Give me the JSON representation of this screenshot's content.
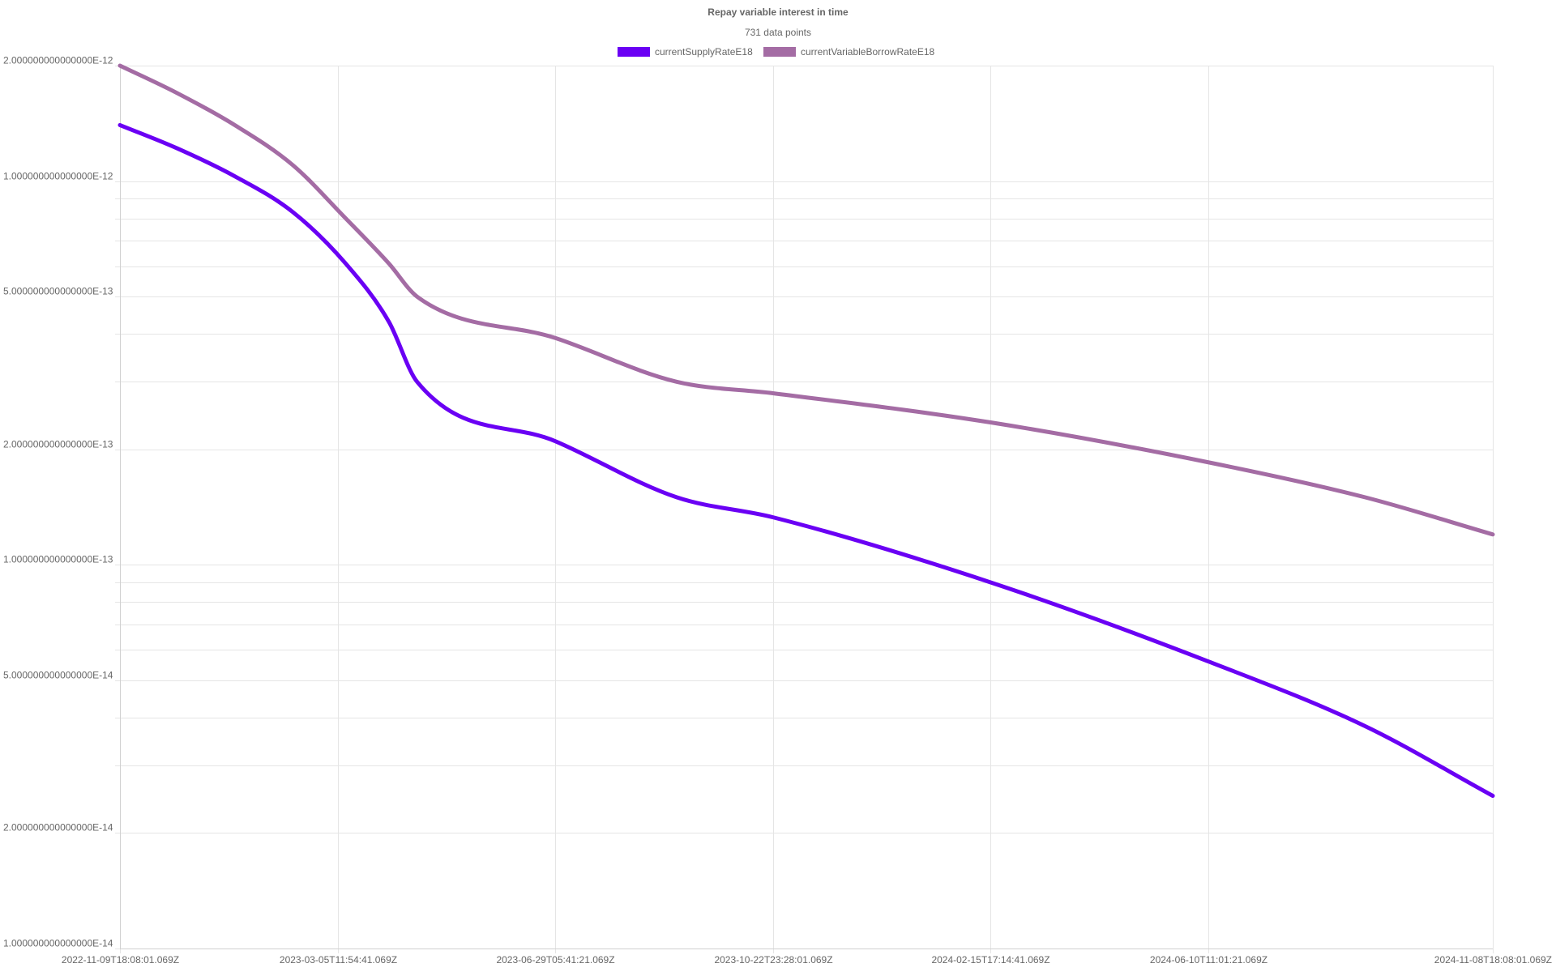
{
  "chart_data": {
    "type": "line",
    "title": "Repay variable interest in time",
    "subtitle": "731 data points",
    "xlabel": "",
    "ylabel": "",
    "x_scale": "time",
    "y_scale": "log",
    "x_range": [
      "2022-11-09T18:08:01.069Z",
      "2024-11-08T18:08:01.069Z"
    ],
    "ylim": [
      1e-14,
      2e-12
    ],
    "x_tick_labels": [
      "2022-11-09T18:08:01.069Z",
      "2023-03-05T11:54:41.069Z",
      "2023-06-29T05:41:21.069Z",
      "2023-10-22T23:28:01.069Z",
      "2024-02-15T17:14:41.069Z",
      "2024-06-10T11:01:21.069Z",
      "2024-11-08T18:08:01.069Z"
    ],
    "y_tick_labels": [
      "2.000000000000000E-12",
      "1.000000000000000E-12",
      "5.000000000000000E-13",
      "2.000000000000000E-13",
      "1.000000000000000E-13",
      "5.000000000000000E-14",
      "2.000000000000000E-14",
      "1.000000000000000E-14"
    ],
    "y_ticks": [
      2e-12,
      1e-12,
      5e-13,
      2e-13,
      1e-13,
      5e-14,
      2e-14,
      1e-14
    ],
    "y_minor_gridlines": [
      9e-13,
      8e-13,
      7e-13,
      6e-13,
      4e-13,
      3e-13,
      9e-14,
      8e-14,
      7e-14,
      6e-14,
      4e-14,
      3e-14
    ],
    "grid": true,
    "legend": "top-center",
    "series": [
      {
        "name": "currentSupplyRateE18",
        "color": "#6a00f4",
        "points": [
          [
            "2022-11-09T18:08:01.069Z",
            1.4e-12
          ],
          [
            "2022-12-09T18:08:01.069Z",
            1.22e-12
          ],
          [
            "2023-01-09T18:08:01.069Z",
            1.03e-12
          ],
          [
            "2023-02-09T18:08:01.069Z",
            8.3e-13
          ],
          [
            "2023-03-09T18:08:01.069Z",
            6.1e-13
          ],
          [
            "2023-04-01T18:08:01.069Z",
            4.3e-13
          ],
          [
            "2023-04-16T18:08:01.069Z",
            3e-13
          ],
          [
            "2023-06-29T05:41:21.069Z",
            2.1e-13
          ],
          [
            "2023-09-01T18:08:01.069Z",
            1.5e-13
          ],
          [
            "2023-10-22T23:28:01.069Z",
            1.33e-13
          ],
          [
            "2024-02-15T17:14:41.069Z",
            9e-14
          ],
          [
            "2024-06-10T11:01:21.069Z",
            5.6e-14
          ],
          [
            "2024-09-01T18:08:01.069Z",
            3.8e-14
          ],
          [
            "2024-11-08T18:08:01.069Z",
            2.5e-14
          ]
        ]
      },
      {
        "name": "currentVariableBorrowRateE18",
        "color": "#a46ca4",
        "points": [
          [
            "2022-11-09T18:08:01.069Z",
            2e-12
          ],
          [
            "2022-12-09T18:08:01.069Z",
            1.7e-12
          ],
          [
            "2023-01-09T18:08:01.069Z",
            1.4e-12
          ],
          [
            "2023-02-09T18:08:01.069Z",
            1.1e-12
          ],
          [
            "2023-03-09T18:08:01.069Z",
            8e-13
          ],
          [
            "2023-04-01T18:08:01.069Z",
            6.1e-13
          ],
          [
            "2023-04-16T18:08:01.069Z",
            5e-13
          ],
          [
            "2023-06-29T05:41:21.069Z",
            3.9e-13
          ],
          [
            "2023-09-01T18:08:01.069Z",
            3e-13
          ],
          [
            "2023-10-22T23:28:01.069Z",
            2.8e-13
          ],
          [
            "2024-02-15T17:14:41.069Z",
            2.35e-13
          ],
          [
            "2024-06-10T11:01:21.069Z",
            1.85e-13
          ],
          [
            "2024-09-01T18:08:01.069Z",
            1.5e-13
          ],
          [
            "2024-11-08T18:08:01.069Z",
            1.2e-13
          ]
        ]
      }
    ]
  }
}
